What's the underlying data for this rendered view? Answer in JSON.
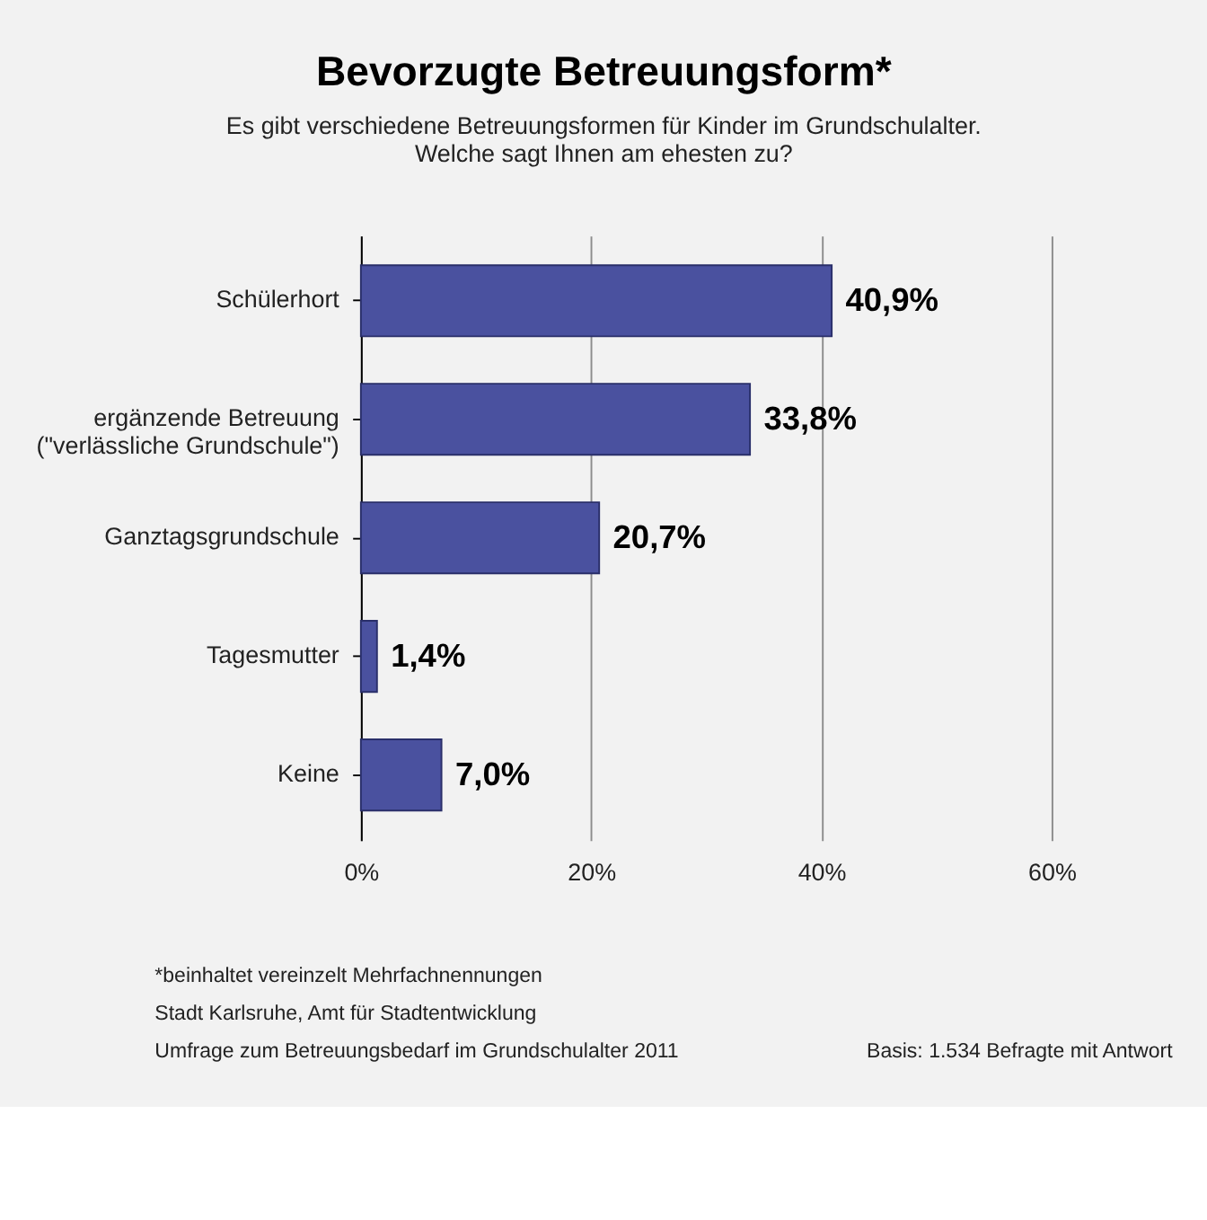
{
  "chart_data": {
    "type": "bar",
    "orientation": "horizontal",
    "title": "Bevorzugte Betreuungsform*",
    "subtitle": [
      "Es gibt verschiedene Betreuungsformen für Kinder im Grundschulalter.",
      "Welche sagt Ihnen am ehesten zu?"
    ],
    "categories": [
      "Schülerhort",
      "ergänzende Betreuung\n(\"verlässliche Grundschule\")",
      "Ganztagsgrundschule",
      "Tagesmutter",
      "Keine"
    ],
    "values": [
      40.9,
      33.8,
      20.7,
      1.4,
      7.0
    ],
    "color": "#4a519f",
    "value_labels": [
      "40,9%",
      "33,8%",
      "20,7%",
      "1,4%",
      "7,0%"
    ],
    "xlim": [
      0,
      60
    ],
    "xticks": [
      {
        "value": 0,
        "label": "0%"
      },
      {
        "value": 20,
        "label": "20%"
      },
      {
        "value": 40,
        "label": "40%"
      },
      {
        "value": 60,
        "label": "60%"
      }
    ],
    "grid": "x",
    "annotations": [
      "*beinhaltet vereinzelt Mehrfachnennungen",
      "Stadt Karlsruhe, Amt für Stadtentwicklung",
      "Umfrage zum Betreuungsbedarf im Grundschulalter 2011",
      "Basis: 1.534 Befragte mit Antwort"
    ]
  }
}
